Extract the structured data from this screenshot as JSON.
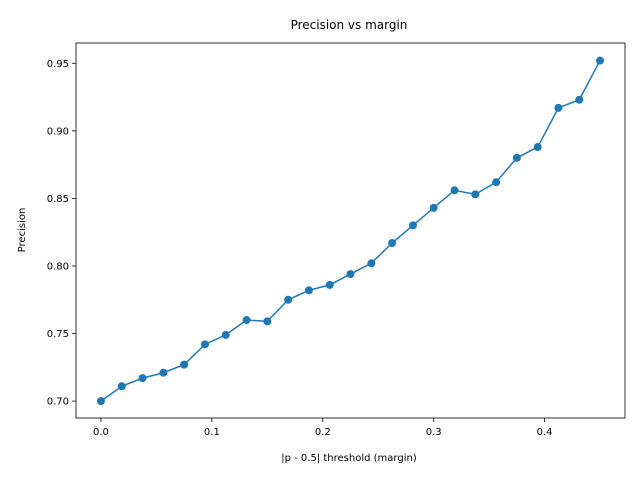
{
  "chart_data": {
    "type": "line",
    "title": "Precision vs margin",
    "xlabel": "|p - 0.5| threshold (margin)",
    "ylabel": "Precision",
    "xlim": [
      -0.0225,
      0.4725
    ],
    "ylim": [
      0.6875,
      0.965
    ],
    "x_ticks": [
      0.0,
      0.1,
      0.2,
      0.3,
      0.4
    ],
    "x_tick_labels": [
      "0.0",
      "0.1",
      "0.2",
      "0.3",
      "0.4"
    ],
    "y_ticks": [
      0.7,
      0.75,
      0.8,
      0.85,
      0.9,
      0.95
    ],
    "y_tick_labels": [
      "0.70",
      "0.75",
      "0.80",
      "0.85",
      "0.90",
      "0.95"
    ],
    "grid": false,
    "legend": "none",
    "marker": "circle",
    "color": "#1f77b4",
    "series": [
      {
        "x": [
          0.0,
          0.0188,
          0.0375,
          0.0563,
          0.075,
          0.0938,
          0.1125,
          0.1313,
          0.15,
          0.1688,
          0.1875,
          0.2063,
          0.225,
          0.2438,
          0.2625,
          0.2813,
          0.3,
          0.3188,
          0.3375,
          0.3563,
          0.375,
          0.3938,
          0.4125,
          0.4313,
          0.45
        ],
        "y": [
          0.7,
          0.711,
          0.717,
          0.721,
          0.727,
          0.742,
          0.749,
          0.76,
          0.759,
          0.775,
          0.782,
          0.786,
          0.794,
          0.802,
          0.817,
          0.83,
          0.843,
          0.856,
          0.853,
          0.862,
          0.88,
          0.888,
          0.917,
          0.923,
          0.952
        ]
      }
    ]
  }
}
